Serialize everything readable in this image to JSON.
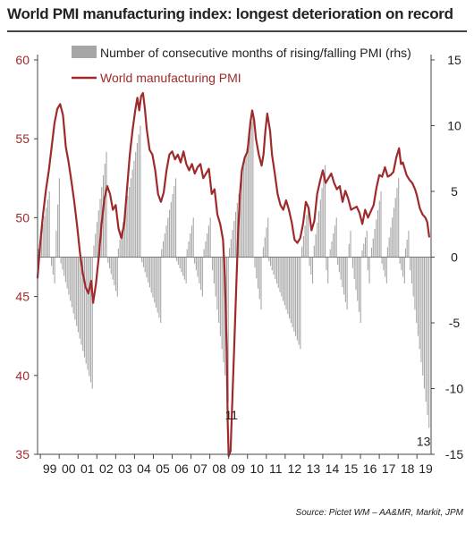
{
  "title": "World PMI manufacturing index: longest deterioration on record",
  "source": "Source: Pictet WM – AA&MR, Markit, JPM",
  "chart_data": {
    "type": "bar+line",
    "title": "World PMI manufacturing index: longest deterioration on record",
    "x_start_year": 1998.85,
    "x_end_year": 2019.75,
    "x_ticks": [
      "99",
      "00",
      "01",
      "02",
      "03",
      "04",
      "05",
      "06",
      "07",
      "08",
      "09",
      "10",
      "11",
      "12",
      "13",
      "14",
      "15",
      "16",
      "17",
      "18",
      "19"
    ],
    "left_axis": {
      "range": [
        35,
        60
      ],
      "ticks": [
        35,
        40,
        45,
        50,
        55,
        60
      ],
      "color": "#9e2a2b"
    },
    "right_axis": {
      "range": [
        -15,
        15
      ],
      "ticks": [
        -15,
        -10,
        -5,
        0,
        5,
        10,
        15
      ],
      "color": "#222222"
    },
    "legend": [
      {
        "label": "Number of consecutive months of rising/falling PMI (rhs)",
        "type": "bar",
        "color": "#a6a6a6"
      },
      {
        "label": "World manufacturing PMI",
        "type": "line",
        "color": "#9e2a2b"
      }
    ],
    "annotations": [
      {
        "text": "11",
        "x_year": 2009.15,
        "y_rhs": -11
      },
      {
        "text": "13",
        "x_year": 2019.35,
        "y_rhs": -13
      }
    ],
    "series": [
      {
        "name": "World manufacturing PMI",
        "axis": "left",
        "color": "#9e2a2b",
        "points": [
          [
            1998.85,
            46.2
          ],
          [
            1999.0,
            48.5
          ],
          [
            1999.15,
            50.3
          ],
          [
            1999.3,
            51.8
          ],
          [
            1999.45,
            53.0
          ],
          [
            1999.6,
            54.5
          ],
          [
            1999.75,
            56.0
          ],
          [
            1999.9,
            56.9
          ],
          [
            2000.05,
            57.2
          ],
          [
            2000.2,
            56.5
          ],
          [
            2000.35,
            54.5
          ],
          [
            2000.5,
            53.5
          ],
          [
            2000.65,
            52.3
          ],
          [
            2000.8,
            51.0
          ],
          [
            2000.95,
            49.5
          ],
          [
            2001.1,
            47.8
          ],
          [
            2001.25,
            46.5
          ],
          [
            2001.4,
            45.6
          ],
          [
            2001.55,
            45.2
          ],
          [
            2001.7,
            46.0
          ],
          [
            2001.8,
            44.6
          ],
          [
            2001.95,
            45.8
          ],
          [
            2002.1,
            47.5
          ],
          [
            2002.25,
            49.6
          ],
          [
            2002.4,
            51.2
          ],
          [
            2002.55,
            52.0
          ],
          [
            2002.7,
            51.5
          ],
          [
            2002.85,
            50.5
          ],
          [
            2003.0,
            50.8
          ],
          [
            2003.15,
            49.3
          ],
          [
            2003.3,
            48.7
          ],
          [
            2003.45,
            49.6
          ],
          [
            2003.6,
            51.8
          ],
          [
            2003.75,
            54.0
          ],
          [
            2003.9,
            55.6
          ],
          [
            2004.05,
            56.9
          ],
          [
            2004.15,
            57.6
          ],
          [
            2004.25,
            56.8
          ],
          [
            2004.35,
            57.7
          ],
          [
            2004.45,
            57.9
          ],
          [
            2004.55,
            56.9
          ],
          [
            2004.65,
            55.6
          ],
          [
            2004.8,
            54.3
          ],
          [
            2004.95,
            54.0
          ],
          [
            2005.1,
            53.0
          ],
          [
            2005.25,
            51.5
          ],
          [
            2005.4,
            51.0
          ],
          [
            2005.55,
            51.6
          ],
          [
            2005.7,
            53.0
          ],
          [
            2005.85,
            54.0
          ],
          [
            2006.0,
            54.2
          ],
          [
            2006.15,
            53.7
          ],
          [
            2006.3,
            54.0
          ],
          [
            2006.45,
            53.5
          ],
          [
            2006.6,
            54.2
          ],
          [
            2006.75,
            53.4
          ],
          [
            2006.9,
            53.0
          ],
          [
            2007.05,
            53.4
          ],
          [
            2007.2,
            52.8
          ],
          [
            2007.35,
            53.2
          ],
          [
            2007.5,
            53.4
          ],
          [
            2007.65,
            52.5
          ],
          [
            2007.8,
            52.8
          ],
          [
            2007.95,
            53.1
          ],
          [
            2008.1,
            51.5
          ],
          [
            2008.25,
            51.8
          ],
          [
            2008.4,
            50.2
          ],
          [
            2008.55,
            49.6
          ],
          [
            2008.7,
            48.6
          ],
          [
            2008.8,
            46.2
          ],
          [
            2008.9,
            41.5
          ],
          [
            2008.95,
            37.0
          ],
          [
            2009.0,
            34.9
          ],
          [
            2009.1,
            35.2
          ],
          [
            2009.2,
            38.6
          ],
          [
            2009.3,
            42.0
          ],
          [
            2009.4,
            45.5
          ],
          [
            2009.5,
            49.0
          ],
          [
            2009.6,
            51.5
          ],
          [
            2009.7,
            53.0
          ],
          [
            2009.85,
            53.8
          ],
          [
            2010.0,
            54.2
          ],
          [
            2010.15,
            56.0
          ],
          [
            2010.25,
            56.8
          ],
          [
            2010.35,
            56.2
          ],
          [
            2010.45,
            55.0
          ],
          [
            2010.6,
            54.0
          ],
          [
            2010.75,
            53.3
          ],
          [
            2010.85,
            54.0
          ],
          [
            2010.95,
            55.5
          ],
          [
            2011.05,
            56.6
          ],
          [
            2011.2,
            55.5
          ],
          [
            2011.3,
            54.0
          ],
          [
            2011.45,
            52.8
          ],
          [
            2011.6,
            51.5
          ],
          [
            2011.75,
            50.8
          ],
          [
            2011.9,
            50.5
          ],
          [
            2012.05,
            51.1
          ],
          [
            2012.2,
            50.5
          ],
          [
            2012.35,
            49.7
          ],
          [
            2012.5,
            48.6
          ],
          [
            2012.65,
            48.4
          ],
          [
            2012.8,
            48.7
          ],
          [
            2012.95,
            49.6
          ],
          [
            2013.1,
            51.0
          ],
          [
            2013.25,
            50.6
          ],
          [
            2013.4,
            49.2
          ],
          [
            2013.55,
            49.8
          ],
          [
            2013.7,
            51.5
          ],
          [
            2013.85,
            52.3
          ],
          [
            2014.0,
            53.0
          ],
          [
            2014.15,
            52.2
          ],
          [
            2014.3,
            52.5
          ],
          [
            2014.45,
            52.8
          ],
          [
            2014.6,
            52.2
          ],
          [
            2014.75,
            51.8
          ],
          [
            2014.9,
            52.0
          ],
          [
            2015.05,
            51.0
          ],
          [
            2015.2,
            51.7
          ],
          [
            2015.35,
            51.2
          ],
          [
            2015.5,
            50.5
          ],
          [
            2015.65,
            50.6
          ],
          [
            2015.8,
            50.7
          ],
          [
            2015.95,
            50.3
          ],
          [
            2016.1,
            49.6
          ],
          [
            2016.25,
            50.5
          ],
          [
            2016.4,
            50.0
          ],
          [
            2016.55,
            50.4
          ],
          [
            2016.7,
            50.8
          ],
          [
            2016.85,
            51.9
          ],
          [
            2017.0,
            52.7
          ],
          [
            2017.15,
            52.6
          ],
          [
            2017.3,
            53.2
          ],
          [
            2017.45,
            52.6
          ],
          [
            2017.6,
            52.7
          ],
          [
            2017.75,
            52.9
          ],
          [
            2017.9,
            53.8
          ],
          [
            2018.05,
            54.4
          ],
          [
            2018.15,
            53.4
          ],
          [
            2018.25,
            53.5
          ],
          [
            2018.35,
            53.1
          ],
          [
            2018.45,
            52.7
          ],
          [
            2018.6,
            52.4
          ],
          [
            2018.75,
            52.2
          ],
          [
            2018.9,
            51.8
          ],
          [
            2019.0,
            51.4
          ],
          [
            2019.15,
            50.6
          ],
          [
            2019.3,
            50.2
          ],
          [
            2019.45,
            50.0
          ],
          [
            2019.55,
            49.7
          ],
          [
            2019.65,
            48.8
          ]
        ]
      },
      {
        "name": "Number of consecutive months of rising/falling PMI (rhs)",
        "axis": "right",
        "color": "#a6a6a6",
        "segments": [
          [
            1998.85,
            1999.55,
            1,
            5
          ],
          [
            1999.55,
            1999.8,
            -1,
            -2
          ],
          [
            1999.8,
            2000.05,
            1,
            6
          ],
          [
            2000.05,
            2001.8,
            -1,
            -10
          ],
          [
            2001.8,
            2002.55,
            1,
            8
          ],
          [
            2002.55,
            2003.1,
            -1,
            -3
          ],
          [
            2003.1,
            2004.35,
            1,
            10
          ],
          [
            2004.35,
            2005.4,
            -1,
            -5
          ],
          [
            2005.4,
            2006.2,
            1,
            6
          ],
          [
            2006.2,
            2006.75,
            -1,
            -2
          ],
          [
            2006.75,
            2007.15,
            1,
            3
          ],
          [
            2007.15,
            2007.65,
            -1,
            -3
          ],
          [
            2007.65,
            2008.1,
            1,
            3
          ],
          [
            2008.1,
            2009.0,
            -1,
            -11
          ],
          [
            2009.0,
            2010.35,
            1,
            11
          ],
          [
            2010.35,
            2010.8,
            -1,
            -4
          ],
          [
            2010.8,
            2011.1,
            1,
            3
          ],
          [
            2011.1,
            2012.85,
            -1,
            -7
          ],
          [
            2012.85,
            2013.25,
            1,
            4
          ],
          [
            2013.25,
            2013.5,
            -1,
            -2
          ],
          [
            2013.5,
            2014.15,
            1,
            7
          ],
          [
            2014.15,
            2014.35,
            -1,
            -2
          ],
          [
            2014.35,
            2014.75,
            1,
            3
          ],
          [
            2014.75,
            2015.35,
            -1,
            -4
          ],
          [
            2015.35,
            2015.55,
            1,
            2
          ],
          [
            2015.55,
            2016.05,
            -1,
            -5
          ],
          [
            2016.05,
            2016.35,
            1,
            2
          ],
          [
            2016.35,
            2016.55,
            -1,
            -2
          ],
          [
            2016.55,
            2017.1,
            1,
            5
          ],
          [
            2017.1,
            2017.4,
            -1,
            -2
          ],
          [
            2017.4,
            2018.05,
            1,
            6
          ],
          [
            2018.05,
            2018.35,
            -1,
            -2
          ],
          [
            2018.35,
            2018.6,
            1,
            2
          ],
          [
            2018.6,
            2019.65,
            -1,
            -13
          ]
        ]
      }
    ]
  }
}
